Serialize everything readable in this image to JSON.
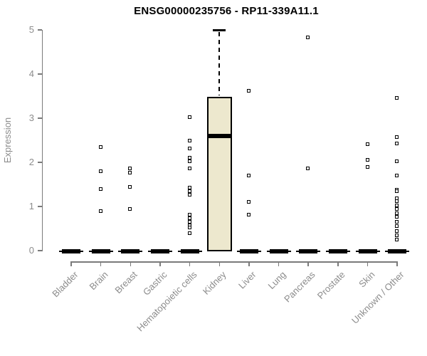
{
  "chart_data": {
    "type": "boxplot",
    "title": "ENSG00000235756 - RP11-339A11.1",
    "ylabel": "Expression",
    "xlabel": "",
    "ylim": [
      0,
      5
    ],
    "yticks": [
      "0",
      "1",
      "2",
      "3",
      "4",
      "5"
    ],
    "grid": false,
    "legend": "none",
    "box_fill_color": "#EDE8CE",
    "box_line_color": "#000000",
    "axis_color": "#7a7a7a",
    "text_color": "#8c8c8c",
    "title_color": "#000000",
    "categories": [
      "Bladder",
      "Brain",
      "Breast",
      "Gastric",
      "Hematopoietic cells",
      "Kidney",
      "Liver",
      "Lung",
      "Pancreas",
      "Prostate",
      "Skin",
      "Unknown / Other"
    ],
    "boxes": [
      {
        "category": "Bladder",
        "q1": 0,
        "median": 0,
        "q3": 0,
        "whisker_low": 0,
        "whisker_high": 0,
        "outliers": []
      },
      {
        "category": "Brain",
        "q1": 0,
        "median": 0,
        "q3": 0,
        "whisker_low": 0,
        "whisker_high": 0,
        "outliers": [
          2.35,
          1.8,
          1.4,
          0.9
        ]
      },
      {
        "category": "Breast",
        "q1": 0,
        "median": 0,
        "q3": 0,
        "whisker_low": 0,
        "whisker_high": 0,
        "outliers": [
          1.87,
          1.76,
          1.45,
          0.94
        ]
      },
      {
        "category": "Gastric",
        "q1": 0,
        "median": 0,
        "q3": 0,
        "whisker_low": 0,
        "whisker_high": 0,
        "outliers": []
      },
      {
        "category": "Hematopoietic cells",
        "q1": 0,
        "median": 0,
        "q3": 0,
        "whisker_low": 0,
        "whisker_high": 0,
        "outliers": [
          3.03,
          2.5,
          2.32,
          2.1,
          2.02,
          1.87,
          1.43,
          1.35,
          1.26,
          0.81,
          0.74,
          0.66,
          0.58,
          0.52,
          0.4
        ]
      },
      {
        "category": "Kidney",
        "q1": 0,
        "median": 2.6,
        "q3": 3.48,
        "whisker_low": 0,
        "whisker_high": 5.0,
        "outliers": []
      },
      {
        "category": "Liver",
        "q1": 0,
        "median": 0,
        "q3": 0,
        "whisker_low": 0,
        "whisker_high": 0,
        "outliers": [
          3.62,
          1.7,
          1.11,
          0.81
        ]
      },
      {
        "category": "Lung",
        "q1": 0,
        "median": 0,
        "q3": 0,
        "whisker_low": 0,
        "whisker_high": 0,
        "outliers": []
      },
      {
        "category": "Pancreas",
        "q1": 0,
        "median": 0,
        "q3": 0,
        "whisker_low": 0,
        "whisker_high": 0,
        "outliers": [
          4.83,
          1.87
        ]
      },
      {
        "category": "Prostate",
        "q1": 0,
        "median": 0,
        "q3": 0,
        "whisker_low": 0,
        "whisker_high": 0,
        "outliers": []
      },
      {
        "category": "Skin",
        "q1": 0,
        "median": 0,
        "q3": 0,
        "whisker_low": 0,
        "whisker_high": 0,
        "outliers": [
          2.41,
          2.05,
          1.9
        ]
      },
      {
        "category": "Unknown / Other",
        "q1": 0,
        "median": 0,
        "q3": 0,
        "whisker_low": 0,
        "whisker_high": 0,
        "outliers": [
          3.46,
          2.58,
          2.43,
          2.02,
          1.7,
          1.38,
          1.34,
          1.19,
          1.12,
          1.03,
          0.94,
          0.85,
          0.76,
          0.65,
          0.55,
          0.44,
          0.35,
          0.25
        ]
      }
    ]
  }
}
